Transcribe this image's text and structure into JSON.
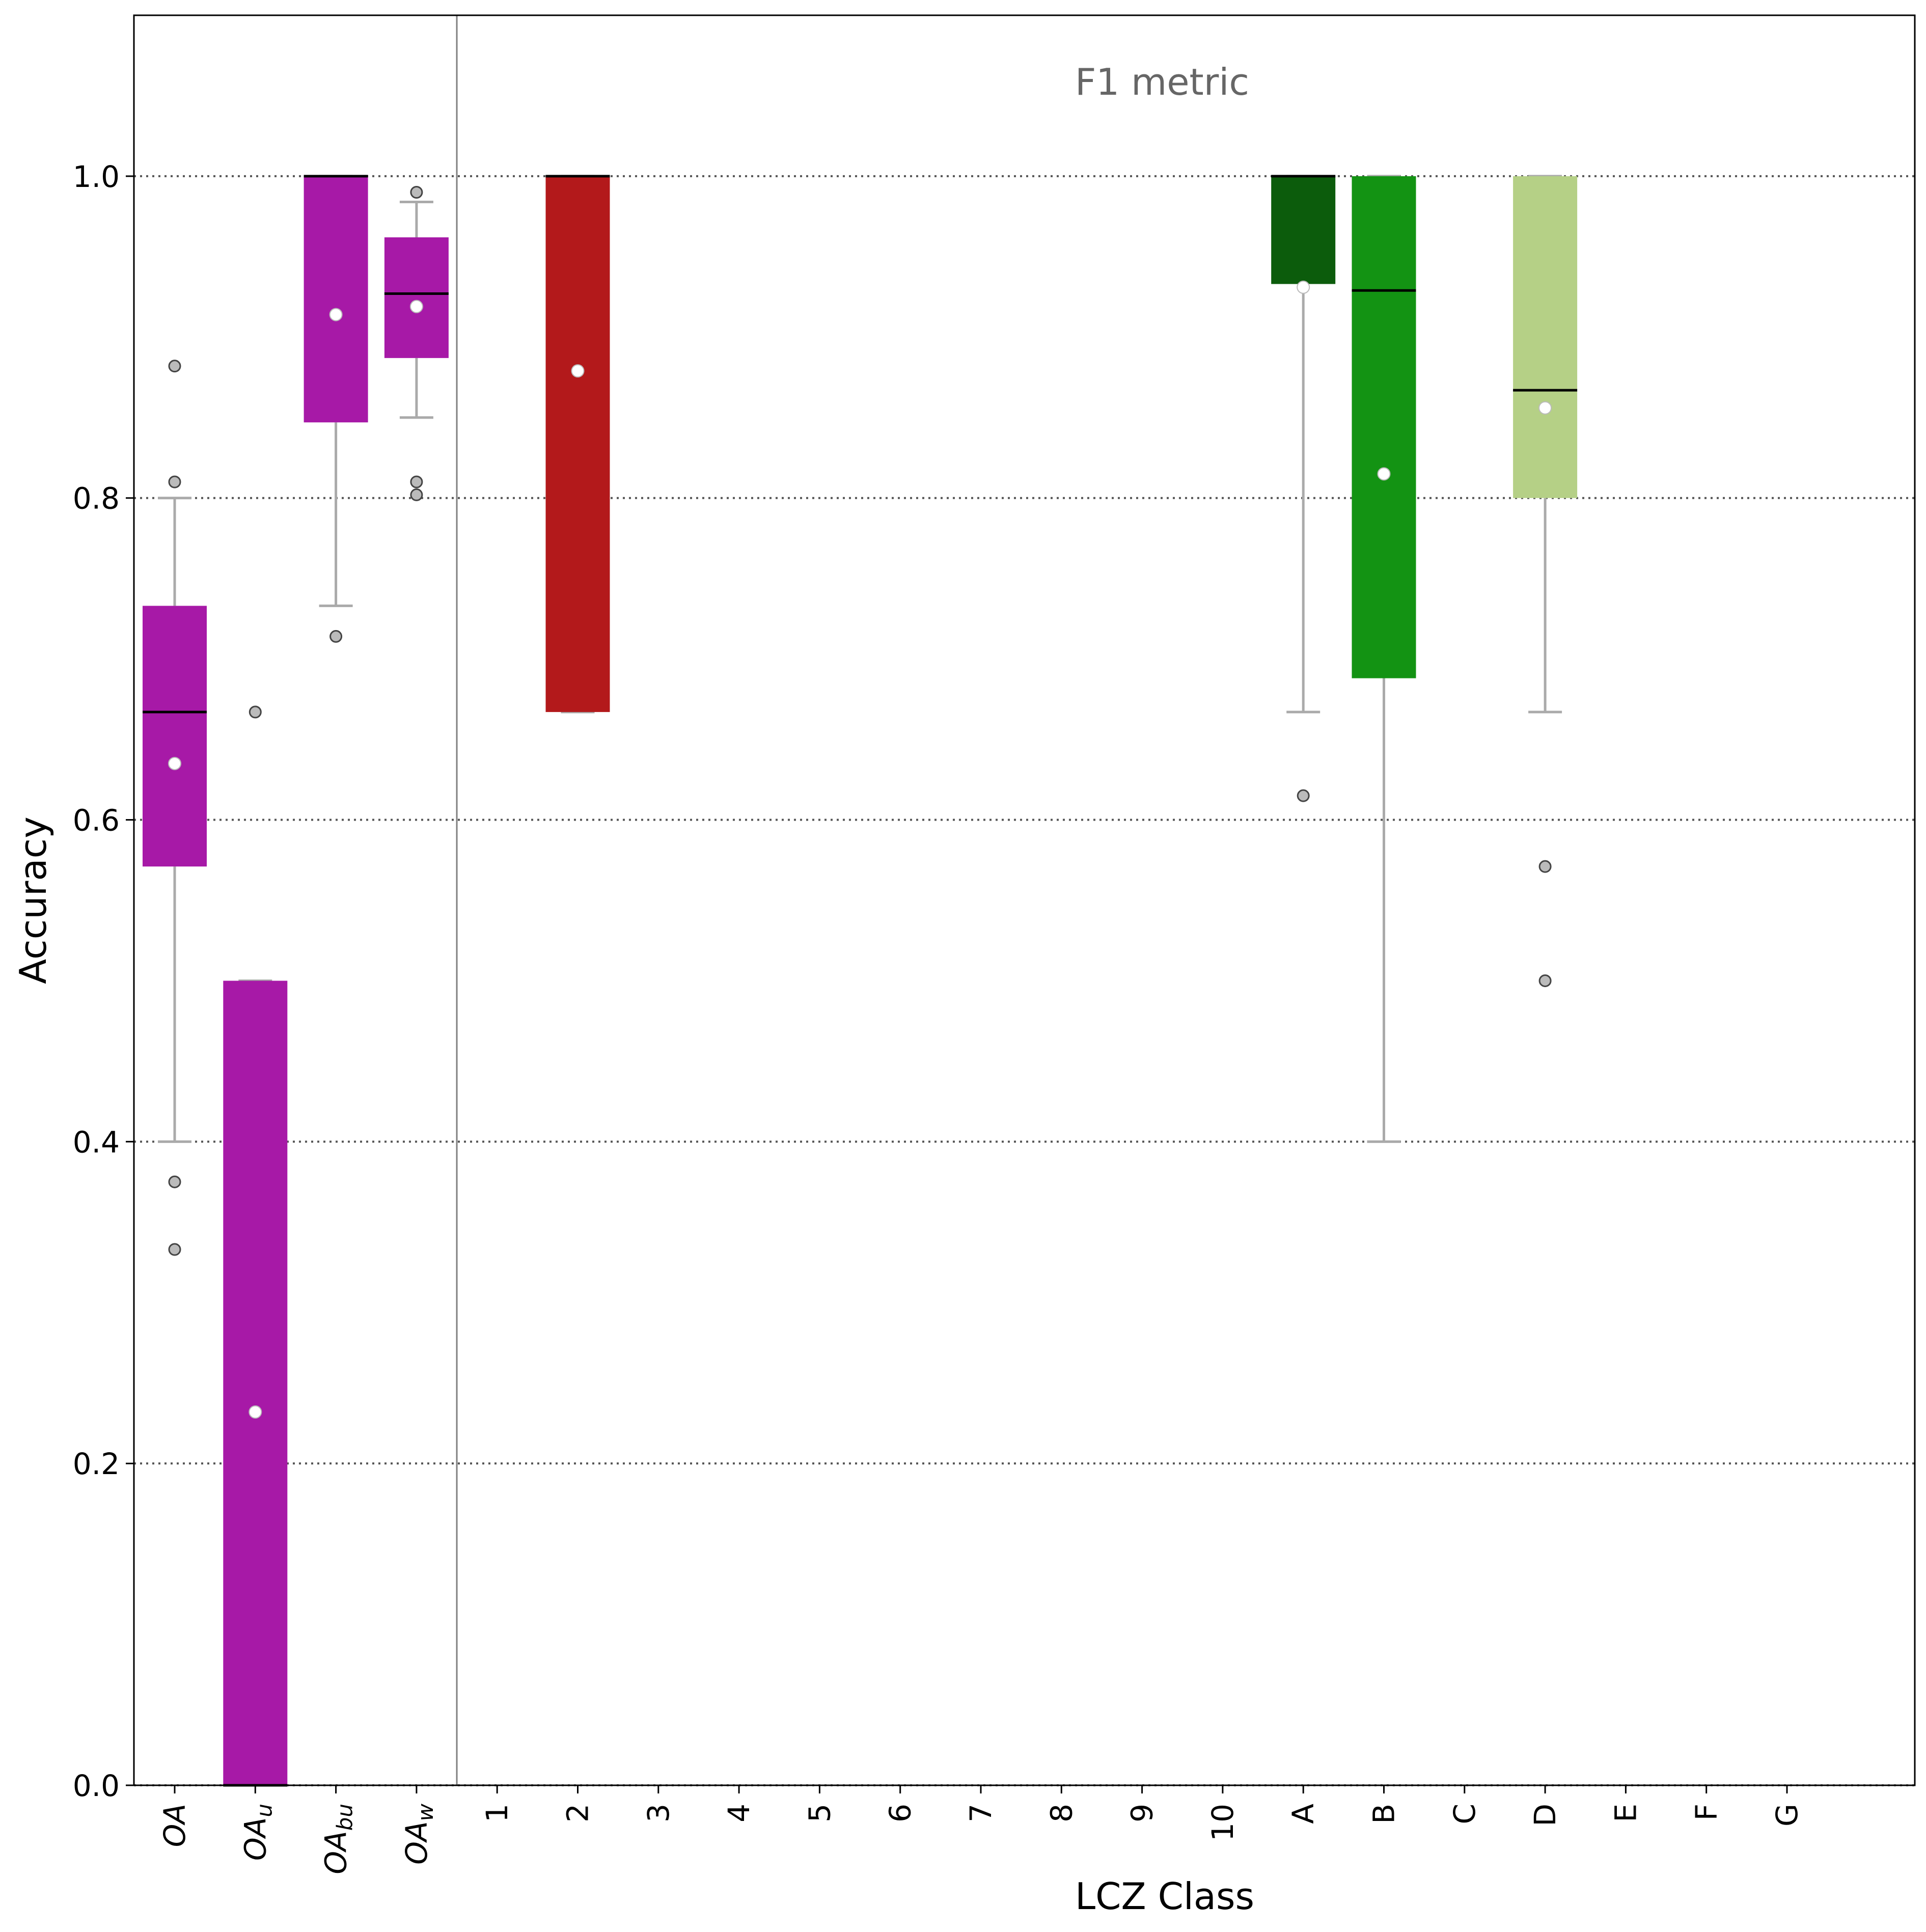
{
  "chart_data": {
    "type": "box",
    "xlabel": "LCZ Class",
    "ylabel": "Accuracy",
    "annotation": "F1 metric",
    "ylim": [
      0,
      1.1
    ],
    "yticks": [
      0.0,
      0.2,
      0.4,
      0.6,
      0.8,
      1.0
    ],
    "ytick_labels": [
      "0.0",
      "0.2",
      "0.4",
      "0.6",
      "0.8",
      "1.0"
    ],
    "grid": "horizontal dotted",
    "categories": [
      {
        "main": "OA",
        "sub": ""
      },
      {
        "main": "OA",
        "sub": "u"
      },
      {
        "main": "OA",
        "sub": "bu"
      },
      {
        "main": "OA",
        "sub": "w"
      },
      {
        "main": "1",
        "sub": ""
      },
      {
        "main": "2",
        "sub": ""
      },
      {
        "main": "3",
        "sub": ""
      },
      {
        "main": "4",
        "sub": ""
      },
      {
        "main": "5",
        "sub": ""
      },
      {
        "main": "6",
        "sub": ""
      },
      {
        "main": "7",
        "sub": ""
      },
      {
        "main": "8",
        "sub": ""
      },
      {
        "main": "9",
        "sub": ""
      },
      {
        "main": "10",
        "sub": ""
      },
      {
        "main": "A",
        "sub": ""
      },
      {
        "main": "B",
        "sub": ""
      },
      {
        "main": "C",
        "sub": ""
      },
      {
        "main": "D",
        "sub": ""
      },
      {
        "main": "E",
        "sub": ""
      },
      {
        "main": "F",
        "sub": ""
      },
      {
        "main": "G",
        "sub": ""
      }
    ],
    "boxes": [
      {
        "category": 0,
        "color": "#a719a7",
        "q1": 0.571,
        "median": 0.667,
        "q3": 0.733,
        "mean": 0.635,
        "whisker_low": 0.4,
        "whisker_high": 0.8,
        "outliers": [
          0.882,
          0.81,
          0.375,
          0.333
        ]
      },
      {
        "category": 1,
        "color": "#a719a7",
        "q1": 0.0,
        "median": 0.0,
        "q3": 0.5,
        "mean": 0.232,
        "whisker_low": 0.0,
        "whisker_high": 0.5,
        "outliers": [
          0.667
        ]
      },
      {
        "category": 2,
        "color": "#a719a7",
        "q1": 0.847,
        "median": 1.0,
        "q3": 1.0,
        "mean": 0.914,
        "whisker_low": 0.733,
        "whisker_high": 1.0,
        "outliers": [
          0.714
        ]
      },
      {
        "category": 3,
        "color": "#a719a7",
        "q1": 0.887,
        "median": 0.927,
        "q3": 0.962,
        "mean": 0.919,
        "whisker_low": 0.85,
        "whisker_high": 0.984,
        "outliers": [
          0.99,
          0.81,
          0.802
        ]
      },
      {
        "category": 5,
        "color": "#b3191b",
        "q1": 0.667,
        "median": 1.0,
        "q3": 1.0,
        "mean": 0.879,
        "whisker_low": 0.667,
        "whisker_high": 1.0,
        "outliers": []
      },
      {
        "category": 14,
        "color": "#0c5c0c",
        "q1": 0.933,
        "median": 1.0,
        "q3": 1.0,
        "mean": 0.931,
        "whisker_low": 0.667,
        "whisker_high": 1.0,
        "outliers": [
          0.615
        ]
      },
      {
        "category": 15,
        "color": "#139313",
        "q1": 0.688,
        "median": 0.929,
        "q3": 1.0,
        "mean": 0.815,
        "whisker_low": 0.4,
        "whisker_high": 1.0,
        "outliers": []
      },
      {
        "category": 17,
        "color": "#b5d086",
        "q1": 0.8,
        "median": 0.867,
        "q3": 1.0,
        "mean": 0.856,
        "whisker_low": 0.667,
        "whisker_high": 1.0,
        "outliers": [
          0.571,
          0.5
        ]
      }
    ]
  }
}
